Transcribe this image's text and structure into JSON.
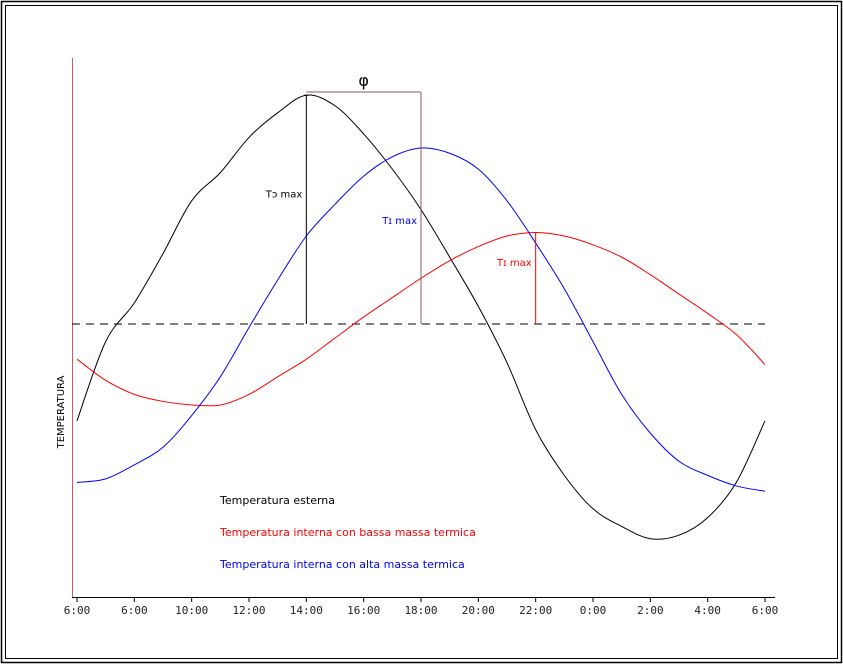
{
  "chart_data": {
    "type": "line",
    "ylabel": "TEMPERATURA",
    "xlabel": "",
    "categories": [
      "6:00",
      "6:00",
      "10:00",
      "12:00",
      "14:00",
      "16:00",
      "18:00",
      "20:00",
      "22:00",
      "0:00",
      "2:00",
      "4:00",
      "6:00"
    ],
    "reference_line": {
      "style": "dashed",
      "color": "#000000"
    },
    "phase_label": "φ",
    "series": [
      {
        "name": "Temperatura esterna",
        "color": "#000000",
        "peak_label": "Tɔ max",
        "peak_category_index": 4,
        "points": [
          [
            0,
            -0.55
          ],
          [
            0.5,
            -0.1
          ],
          [
            1,
            0.12
          ],
          [
            1.5,
            0.4
          ],
          [
            2,
            0.7
          ],
          [
            2.5,
            0.86
          ],
          [
            3,
            1.06
          ],
          [
            3.5,
            1.2
          ],
          [
            4,
            1.3
          ],
          [
            4.5,
            1.24
          ],
          [
            5,
            1.08
          ],
          [
            5.5,
            0.88
          ],
          [
            6,
            0.65
          ],
          [
            6.5,
            0.38
          ],
          [
            7,
            0.1
          ],
          [
            7.5,
            -0.22
          ],
          [
            8,
            -0.6
          ],
          [
            8.5,
            -0.86
          ],
          [
            9,
            -1.05
          ],
          [
            9.5,
            -1.15
          ],
          [
            10,
            -1.22
          ],
          [
            10.5,
            -1.2
          ],
          [
            11,
            -1.1
          ],
          [
            11.5,
            -0.9
          ],
          [
            12,
            -0.55
          ]
        ]
      },
      {
        "name": "Temperatura interna con bassa massa termica",
        "color": "#ff0000",
        "peak_label": "Tɪ max",
        "peak_category_index": 8,
        "points": [
          [
            0,
            -0.2
          ],
          [
            0.5,
            -0.32
          ],
          [
            1,
            -0.4
          ],
          [
            1.5,
            -0.44
          ],
          [
            2,
            -0.46
          ],
          [
            2.5,
            -0.46
          ],
          [
            3,
            -0.4
          ],
          [
            3.5,
            -0.3
          ],
          [
            4,
            -0.2
          ],
          [
            4.5,
            -0.08
          ],
          [
            5,
            0.04
          ],
          [
            5.5,
            0.15
          ],
          [
            6,
            0.26
          ],
          [
            6.5,
            0.36
          ],
          [
            7,
            0.44
          ],
          [
            7.5,
            0.5
          ],
          [
            8,
            0.52
          ],
          [
            8.5,
            0.5
          ],
          [
            9,
            0.45
          ],
          [
            9.5,
            0.38
          ],
          [
            10,
            0.28
          ],
          [
            10.5,
            0.17
          ],
          [
            11,
            0.06
          ],
          [
            11.5,
            -0.06
          ],
          [
            12,
            -0.23
          ]
        ]
      },
      {
        "name": "Temperatura interna con alta massa termica",
        "color": "#0000ff",
        "peak_label": "Tɪ max",
        "peak_category_index": 6,
        "points": [
          [
            0,
            -0.9
          ],
          [
            0.5,
            -0.88
          ],
          [
            1,
            -0.8
          ],
          [
            1.5,
            -0.7
          ],
          [
            2,
            -0.52
          ],
          [
            2.5,
            -0.3
          ],
          [
            3,
            -0.02
          ],
          [
            3.5,
            0.25
          ],
          [
            4,
            0.5
          ],
          [
            4.5,
            0.68
          ],
          [
            5,
            0.84
          ],
          [
            5.5,
            0.95
          ],
          [
            6,
            1.0
          ],
          [
            6.5,
            0.97
          ],
          [
            7,
            0.88
          ],
          [
            7.5,
            0.7
          ],
          [
            8,
            0.46
          ],
          [
            8.5,
            0.2
          ],
          [
            9,
            -0.1
          ],
          [
            9.5,
            -0.4
          ],
          [
            10,
            -0.62
          ],
          [
            10.5,
            -0.78
          ],
          [
            11,
            -0.86
          ],
          [
            11.5,
            -0.92
          ],
          [
            12,
            -0.95
          ]
        ]
      }
    ]
  }
}
